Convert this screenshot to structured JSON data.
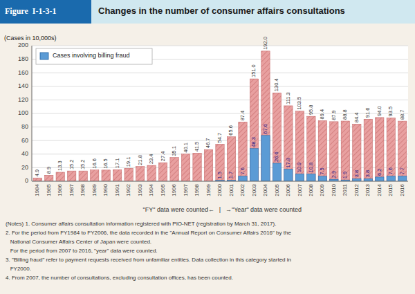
{
  "chart_data": {
    "type": "bar",
    "title": "Changes in the number of consumer affairs consultations",
    "figure_label": "Figure  I-1-3-1",
    "y_label": "(Cases in 10,000s)",
    "categories": [
      "1984",
      "1985",
      "1986",
      "1987",
      "1988",
      "1989",
      "1990",
      "1991",
      "1992",
      "1993",
      "1994",
      "1995",
      "1996",
      "1997",
      "1998",
      "1999",
      "2000",
      "2001",
      "2002",
      "2003",
      "2004",
      "2005",
      "2006",
      "2007",
      "2008",
      "2009",
      "2010",
      "2011",
      "2012",
      "2013",
      "2014",
      "2015",
      "2016"
    ],
    "series": [
      {
        "color": "#e8a0a0",
        "values": [
          4.9,
          8.9,
          13.3,
          15.2,
          15.2,
          16.6,
          16.5,
          17.1,
          19.1,
          21.8,
          23.4,
          27.4,
          35.1,
          40.1,
          41.5,
          46.7,
          54.7,
          65.6,
          87.4,
          151.0,
          192.0,
          130.4,
          111.3,
          103.5,
          95.8,
          89.4,
          87.9,
          88.8,
          84.4,
          91.6,
          94.0,
          93.5,
          88.7
        ],
        "value_labels": [
          "4.9",
          "8.9",
          "13.3",
          "15.2",
          "15.2",
          "16.6",
          "16.5",
          "17.1",
          "19.1",
          "21.8",
          "23.4",
          "27.4",
          "35.1",
          "40.1",
          "41.5",
          "46.7",
          "54.7",
          "65.6",
          "87.4",
          "151.0",
          "192.0",
          "130.4",
          "111.3",
          "103.5",
          "95.8",
          "89.4",
          "87.9",
          "88.8",
          "84.4",
          "91.6",
          "94.0",
          "93.5",
          "88.7"
        ]
      },
      {
        "name": "Cases involving billing fraud",
        "color": "#5b9bd5",
        "values": [
          null,
          null,
          null,
          null,
          null,
          null,
          null,
          null,
          null,
          null,
          null,
          null,
          null,
          null,
          null,
          null,
          1.5,
          1.7,
          7.6,
          48.3,
          67.6,
          26.6,
          17.8,
          10.9,
          10.8,
          7.5,
          2.9,
          1.9,
          3.8,
          3.8,
          6.2,
          7.6,
          7.7
        ]
      }
    ],
    "ylim": [
      0,
      200
    ],
    "yticks": [
      0,
      20,
      40,
      60,
      80,
      100,
      120,
      140,
      160,
      180,
      200
    ],
    "grid": true,
    "stacked": false,
    "legend": "upper left",
    "data_labels": true,
    "annotations": [
      "\"FY\" data were counted←",
      "|",
      "→\"Year\" data were counted"
    ],
    "notes": [
      "(Notes) 1. Consumer affairs consultation information registered with PIO-NET (registration by March 31, 2017).",
      "2. For the period from FY1984 to FY2006, the data recorded in the \"Annual Report on Consumer Affairs 2016\" by the",
      "   National Consumer Affairs Center of Japan were counted.",
      "   For the period from 2007 to 2016, \"year\" data were counted.",
      "3. \"Billing fraud\" refer to payment requests received from unfamiliar entities. Data collection in this category started in",
      "   FY2000.",
      "4. From 2007, the number of consultations, excluding consultation offices, has been counted."
    ]
  }
}
